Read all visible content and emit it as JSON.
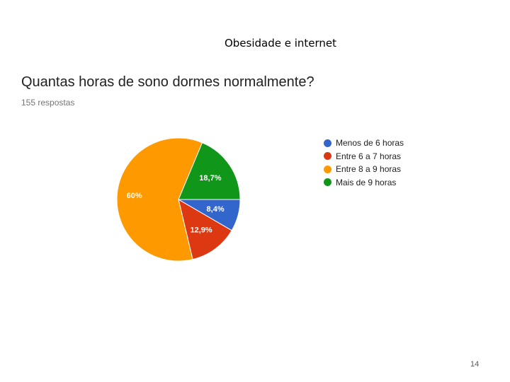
{
  "slide": {
    "title": "Obesidade e internet",
    "page_number": "14"
  },
  "chart_data": {
    "type": "pie",
    "title": "Quantas horas de sono dormes normalmente?",
    "subtitle": "155 respostas",
    "legend_position": "right",
    "categories": [
      "Menos de 6 horas",
      "Entre 6 a 7 horas",
      "Entre 8 a 9 horas",
      "Mais de 9 horas"
    ],
    "values": [
      8.4,
      12.9,
      60,
      18.7
    ],
    "labels": [
      "8,4%",
      "12,9%",
      "60%",
      "18,7%"
    ],
    "colors": [
      "#3366cc",
      "#dc3912",
      "#ff9900",
      "#109618"
    ]
  }
}
